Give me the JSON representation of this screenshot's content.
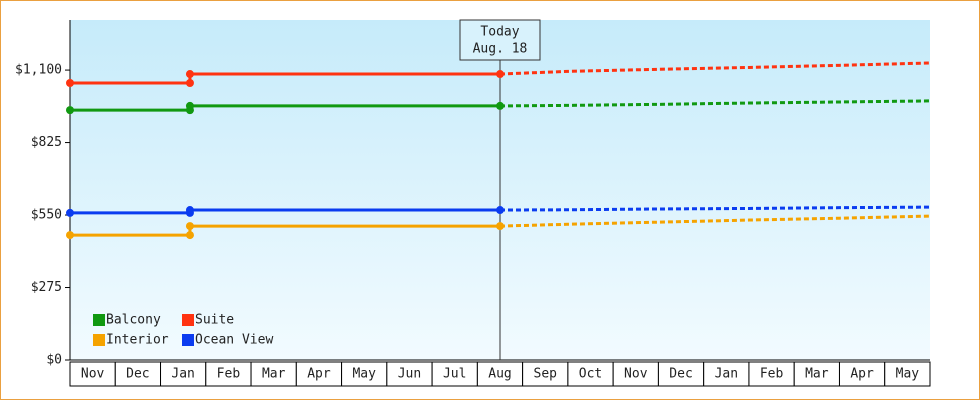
{
  "chart_data": {
    "type": "line",
    "categories": [
      "Nov",
      "Dec",
      "Jan",
      "Feb",
      "Mar",
      "Apr",
      "May",
      "Jun",
      "Jul",
      "Aug",
      "Sep",
      "Oct",
      "Nov",
      "Dec",
      "Jan",
      "Feb",
      "Mar",
      "Apr",
      "May"
    ],
    "x": [
      0,
      2.65,
      2.65,
      9.5
    ],
    "forecast_x": [
      9.5,
      11,
      13,
      15,
      17,
      19
    ],
    "xlim": [
      0,
      19
    ],
    "ylim": [
      0,
      1290
    ],
    "yticks": [
      {
        "value": 0,
        "label": "$0"
      },
      {
        "value": 275,
        "label": "$275"
      },
      {
        "value": 550,
        "label": "$550"
      },
      {
        "value": 825,
        "label": "$825"
      },
      {
        "value": 1100,
        "label": "$1,100"
      }
    ],
    "today_label": "Today",
    "today_date": "Aug. 18",
    "today_x": 9.5,
    "series": [
      {
        "name": "Balcony",
        "color": "#119911",
        "values": [
          948,
          948,
          964,
          964
        ],
        "forecast": [
          964,
          966,
          970,
          975,
          979,
          983
        ]
      },
      {
        "name": "Suite",
        "color": "#ff3311",
        "values": [
          1051,
          1051,
          1085,
          1085
        ],
        "forecast": [
          1085,
          1095,
          1103,
          1110,
          1118,
          1127
        ]
      },
      {
        "name": "Interior",
        "color": "#f5a300",
        "values": [
          474,
          474,
          508,
          508
        ],
        "forecast": [
          508,
          515,
          523,
          531,
          538,
          546
        ]
      },
      {
        "name": "Ocean View",
        "color": "#0b3cf0",
        "values": [
          558,
          558,
          569,
          569
        ],
        "forecast": [
          569,
          570,
          573,
          575,
          578,
          580
        ]
      }
    ]
  }
}
